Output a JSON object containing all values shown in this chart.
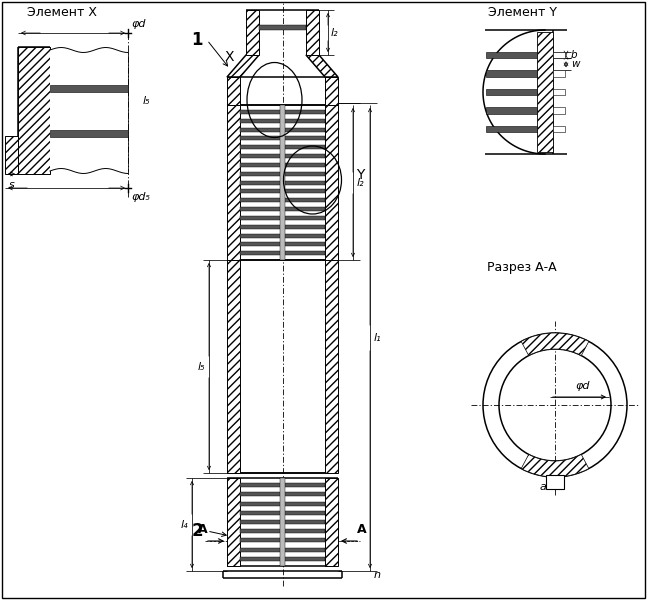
{
  "bg_color": "#ffffff",
  "title_elem_x": "Элемент X",
  "title_elem_y": "Элемент Y",
  "title_razrez": "Разрез А-А",
  "label_phi_d": "φd",
  "label_phi_d5": "φd₅",
  "label_s": "s",
  "label_l2": "l₂",
  "label_l1": "l₁",
  "label_l4": "l₄",
  "label_l5": "l₅",
  "label_n": "n",
  "label_b": "b",
  "label_w": "w",
  "label_phi_d_razrez": "φd",
  "label_a": "a",
  "label_X": "X",
  "label_Y": "Y",
  "label_1": "1",
  "label_2": "2",
  "label_A": "A"
}
